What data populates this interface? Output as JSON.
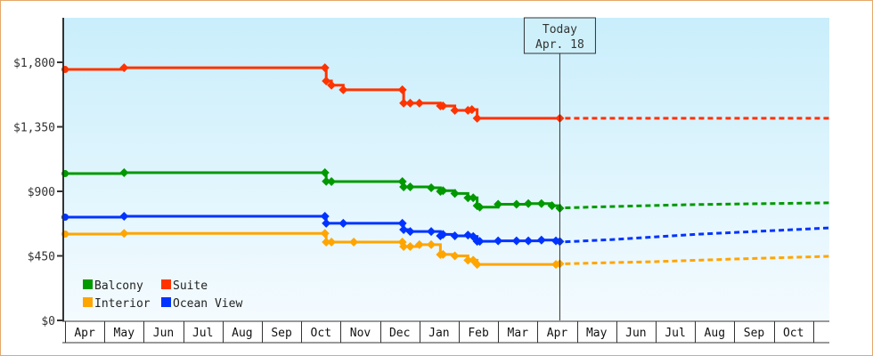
{
  "chart_data": {
    "type": "line",
    "step": true,
    "title": "",
    "xlabel": "",
    "ylabel": "",
    "ylim": [
      0,
      2050
    ],
    "y_ticks": [
      "$0",
      "$450",
      "$900",
      "$1,350",
      "$1,800"
    ],
    "y_tick_values": [
      0,
      450,
      900,
      1350,
      1800
    ],
    "x_ticks": [
      "Apr",
      "May",
      "Jun",
      "Jul",
      "Aug",
      "Sep",
      "Oct",
      "Nov",
      "Dec",
      "Jan",
      "Feb",
      "Mar",
      "Apr",
      "May",
      "Jun",
      "Jul",
      "Aug",
      "Sep",
      "Oct"
    ],
    "grid": false,
    "legend_position": "bottom-left",
    "today": {
      "label": "Today",
      "date_label": "Apr. 18",
      "date": "Apr 18"
    },
    "series": [
      {
        "name": "Balcony",
        "color": "#009900",
        "points": [
          [
            "Apr 1",
            1024
          ],
          [
            "May 16",
            1030
          ],
          [
            "Oct 19",
            1030
          ],
          [
            "Oct 20",
            970
          ],
          [
            "Oct 24",
            968
          ],
          [
            "Dec 18",
            968
          ],
          [
            "Dec 19",
            931
          ],
          [
            "Dec 24",
            931
          ],
          [
            "Jan 10",
            925
          ],
          [
            "Jan 17",
            900
          ],
          [
            "Jan 19",
            905
          ],
          [
            "Jan 28",
            885
          ],
          [
            "Feb 8",
            855
          ],
          [
            "Feb 12",
            855
          ],
          [
            "Feb 15",
            800
          ],
          [
            "Feb 17",
            790
          ],
          [
            "Mar 1",
            810
          ],
          [
            "Mar 15",
            810
          ],
          [
            "Mar 24",
            815
          ],
          [
            "Apr 4",
            815
          ],
          [
            "Apr 12",
            800
          ],
          [
            "Apr 18",
            782
          ]
        ],
        "forecast": [
          [
            "Apr 18",
            785
          ],
          [
            "Jun 1",
            795
          ],
          [
            "Aug 1",
            808
          ],
          [
            "Nov 15",
            820
          ]
        ]
      },
      {
        "name": "Suite",
        "color": "#ff3300",
        "points": [
          [
            "Apr 1",
            1750
          ],
          [
            "May 16",
            1762
          ],
          [
            "Oct 19",
            1762
          ],
          [
            "Oct 20",
            1670
          ],
          [
            "Oct 24",
            1640
          ],
          [
            "Nov 3",
            1608
          ],
          [
            "Dec 18",
            1608
          ],
          [
            "Dec 19",
            1515
          ],
          [
            "Dec 24",
            1515
          ],
          [
            "Jan 1",
            1515
          ],
          [
            "Jan 17",
            1496
          ],
          [
            "Jan 19",
            1496
          ],
          [
            "Jan 28",
            1465
          ],
          [
            "Feb 8",
            1465
          ],
          [
            "Feb 11",
            1470
          ],
          [
            "Feb 15",
            1410
          ],
          [
            "Apr 18",
            1410
          ]
        ],
        "forecast": [
          [
            "Apr 18",
            1410
          ],
          [
            "Nov 15",
            1410
          ]
        ]
      },
      {
        "name": "Interior",
        "color": "#ffa500",
        "points": [
          [
            "Apr 1",
            602
          ],
          [
            "May 16",
            607
          ],
          [
            "Oct 19",
            607
          ],
          [
            "Oct 20",
            546
          ],
          [
            "Oct 24",
            546
          ],
          [
            "Nov 11",
            546
          ],
          [
            "Dec 18",
            546
          ],
          [
            "Dec 19",
            515
          ],
          [
            "Dec 24",
            515
          ],
          [
            "Jan 1",
            528
          ],
          [
            "Jan 10",
            528
          ],
          [
            "Jan 17",
            459
          ],
          [
            "Jan 19",
            460
          ],
          [
            "Jan 28",
            450
          ],
          [
            "Feb 8",
            420
          ],
          [
            "Feb 12",
            420
          ],
          [
            "Feb 15",
            390
          ],
          [
            "Apr 15",
            390
          ],
          [
            "Apr 18",
            395
          ]
        ],
        "forecast": [
          [
            "Apr 18",
            395
          ],
          [
            "Jul 1",
            410
          ],
          [
            "Sep 1",
            428
          ],
          [
            "Nov 15",
            447
          ]
        ]
      },
      {
        "name": "Ocean View",
        "color": "#0033ff",
        "points": [
          [
            "Apr 1",
            720
          ],
          [
            "May 16",
            726
          ],
          [
            "Oct 19",
            726
          ],
          [
            "Oct 20",
            677
          ],
          [
            "Nov 3",
            677
          ],
          [
            "Dec 18",
            677
          ],
          [
            "Dec 19",
            633
          ],
          [
            "Dec 24",
            620
          ],
          [
            "Jan 10",
            620
          ],
          [
            "Jan 17",
            590
          ],
          [
            "Jan 19",
            600
          ],
          [
            "Jan 28",
            590
          ],
          [
            "Feb 8",
            595
          ],
          [
            "Feb 12",
            585
          ],
          [
            "Feb 15",
            552
          ],
          [
            "Feb 17",
            552
          ],
          [
            "Mar 1",
            555
          ],
          [
            "Mar 15",
            555
          ],
          [
            "Mar 24",
            555
          ],
          [
            "Apr 4",
            560
          ],
          [
            "Apr 15",
            555
          ],
          [
            "Apr 18",
            550
          ]
        ],
        "forecast": [
          [
            "Apr 18",
            548
          ],
          [
            "Jun 1",
            565
          ],
          [
            "Aug 1",
            600
          ],
          [
            "Nov 15",
            645
          ]
        ]
      }
    ]
  }
}
